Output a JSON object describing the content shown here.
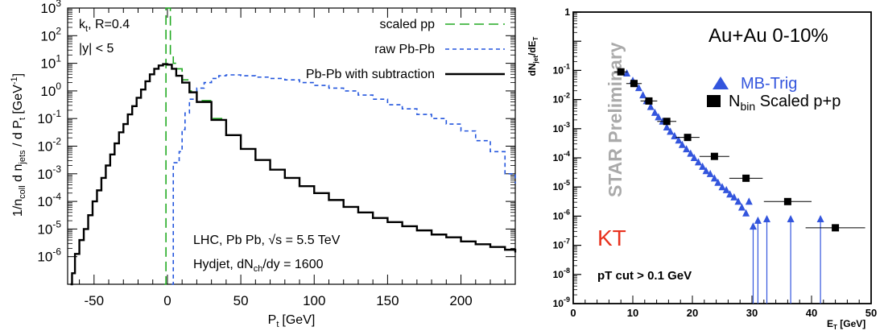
{
  "chart_data": [
    {
      "type": "line",
      "xlabel": "P",
      "xlabel_sub": "t",
      "xlabel_unit": "[GeV]",
      "ylabel_parts": [
        "1/n",
        "coll",
        " d n",
        "jets",
        " / d P",
        "t",
        " [GeV",
        "-1",
        "]"
      ],
      "xlim": [
        -68,
        237
      ],
      "ylim_log10": [
        -7,
        3
      ],
      "y_scale": "log",
      "x_ticks": [
        -50,
        0,
        50,
        100,
        150,
        200
      ],
      "x_tick_labels": [
        "-50",
        "0",
        "50",
        "100",
        "150",
        "200"
      ],
      "y_ticks_log10": [
        -6,
        -5,
        -4,
        -3,
        -2,
        -1,
        0,
        1,
        2,
        3
      ],
      "y_tick_base": "10",
      "y_tick_exps": [
        "-6",
        "-5",
        "-4",
        "-3",
        "-2",
        "-1",
        "0",
        "1",
        "2",
        "3"
      ],
      "annotations": {
        "algo_main": "k",
        "algo_sub": "t",
        "algo_rest": ", R=0.4",
        "rapidity": "|y| < 5",
        "lhc": "LHC, Pb Pb, √s = 5.5 TeV",
        "hydjet_main": "Hydjet, dN",
        "hydjet_sub": "ch",
        "hydjet_rest": "/dy = 1600"
      },
      "legend_position": "top-right",
      "series": [
        {
          "name": "scaled pp",
          "color": "#22aa22",
          "style": "long-dash",
          "x": [
            -2,
            -1,
            0,
            2,
            4,
            6,
            10,
            15,
            20,
            30,
            40,
            50,
            60,
            70,
            80,
            90,
            100,
            110,
            120,
            130,
            140,
            150,
            160,
            170,
            180,
            190,
            200,
            210,
            220,
            230,
            237
          ],
          "y_log10": [
            -7,
            3,
            3,
            1.3,
            1.0,
            0.8,
            0.4,
            0.0,
            -0.35,
            -1.0,
            -1.6,
            -2.1,
            -2.5,
            -2.85,
            -3.15,
            -3.45,
            -3.7,
            -3.95,
            -4.2,
            -4.4,
            -4.6,
            -4.75,
            -4.9,
            -5.05,
            -5.2,
            -5.3,
            -5.45,
            -5.55,
            -5.65,
            -5.75,
            -5.85
          ]
        },
        {
          "name": "raw Pb-Pb",
          "color": "#2255dd",
          "style": "short-dash",
          "x": [
            3,
            4,
            6,
            8,
            10,
            12,
            15,
            20,
            25,
            30,
            35,
            40,
            45,
            50,
            60,
            70,
            80,
            90,
            100,
            110,
            120,
            130,
            140,
            150,
            160,
            170,
            180,
            190,
            200,
            210,
            220,
            230,
            237
          ],
          "y_log10": [
            -7,
            -2.6,
            -2.6,
            -2.2,
            -1.4,
            -0.8,
            -0.3,
            0.1,
            0.3,
            0.45,
            0.55,
            0.58,
            0.58,
            0.55,
            0.5,
            0.45,
            0.4,
            0.3,
            0.2,
            0.1,
            0.0,
            -0.15,
            -0.3,
            -0.5,
            -0.65,
            -0.85,
            -1.0,
            -1.2,
            -1.45,
            -1.8,
            -2.2,
            -3.0,
            -3.35
          ]
        },
        {
          "name": "Pb-Pb with subtraction",
          "color": "#000000",
          "style": "solid",
          "x": [
            -66,
            -65,
            -63,
            -60,
            -57,
            -54,
            -51,
            -48,
            -45,
            -42,
            -39,
            -36,
            -33,
            -30,
            -27,
            -24,
            -21,
            -18,
            -15,
            -12,
            -9,
            -6,
            -3,
            0,
            3,
            6,
            10,
            15,
            20,
            30,
            40,
            50,
            60,
            70,
            80,
            90,
            100,
            110,
            120,
            130,
            140,
            150,
            160,
            170,
            180,
            190,
            200,
            210,
            220,
            230,
            237
          ],
          "y_log10": [
            -7,
            -6.6,
            -5.9,
            -5.4,
            -5.0,
            -4.5,
            -4.0,
            -3.6,
            -3.15,
            -2.7,
            -2.3,
            -1.9,
            -1.5,
            -1.2,
            -0.85,
            -0.55,
            -0.25,
            0.05,
            0.35,
            0.6,
            0.8,
            0.92,
            0.97,
            0.95,
            0.8,
            0.55,
            0.3,
            -0.05,
            -0.4,
            -1.05,
            -1.6,
            -2.1,
            -2.5,
            -2.85,
            -3.15,
            -3.45,
            -3.7,
            -3.95,
            -4.2,
            -4.4,
            -4.6,
            -4.75,
            -4.9,
            -5.05,
            -5.2,
            -5.3,
            -5.45,
            -5.55,
            -5.65,
            -5.75,
            -5.85
          ]
        }
      ]
    },
    {
      "type": "scatter",
      "xlabel": "E",
      "xlabel_sub": "T",
      "xlabel_unit": " [GeV]",
      "ylabel": "dN",
      "ylabel_sub1": "jet",
      "ylabel_mid": "/dE",
      "ylabel_sub2": "T",
      "xlim": [
        0,
        50
      ],
      "ylim_log10": [
        -9,
        1
      ],
      "y_scale": "log",
      "x_ticks": [
        0,
        10,
        20,
        30,
        40,
        50
      ],
      "x_tick_labels": [
        "0",
        "10",
        "20",
        "30",
        "40",
        "50"
      ],
      "y_ticks_log10": [
        -9,
        -8,
        -7,
        -6,
        -5,
        -4,
        -3,
        -2,
        -1,
        0,
        1
      ],
      "y_tick_base": "10",
      "y_tick_exps": [
        "-9",
        "-8",
        "-7",
        "-6",
        "-5",
        "-4",
        "-3",
        "-2",
        "-1",
        "",
        "1"
      ],
      "y_tick_plain": [
        "",
        "",
        "",
        "",
        "",
        "",
        "",
        "",
        "",
        "",
        "1"
      ],
      "title": "Au+Au 0-10%",
      "watermark": "STAR Preliminary",
      "tag": "KT",
      "cut_label": "pT cut > 0.1 GeV",
      "legend_position": "right",
      "series": [
        {
          "name": "MB-Trig",
          "color": "#3355dd",
          "marker": "triangle",
          "x": [
            9,
            10,
            11,
            11.7,
            12.3,
            13,
            13.7,
            14.3,
            15,
            15.7,
            16.3,
            17,
            17.7,
            18.3,
            19,
            19.7,
            20.3,
            21,
            21.7,
            22.3,
            23,
            23.7,
            24.3,
            25,
            25.7,
            26.3,
            27,
            27.7,
            28.3,
            29,
            29.5,
            30.2,
            31,
            32.5,
            36.5,
            41.5
          ],
          "y_log10": [
            -1.1,
            -1.35,
            -1.6,
            -1.85,
            -2.05,
            -2.25,
            -2.45,
            -2.6,
            -2.75,
            -2.95,
            -3.1,
            -3.25,
            -3.4,
            -3.55,
            -3.7,
            -3.85,
            -4.0,
            -4.15,
            -4.3,
            -4.45,
            -4.55,
            -4.7,
            -4.85,
            -5.0,
            -5.1,
            -5.25,
            -5.35,
            -5.5,
            -5.7,
            -5.9,
            -5.5,
            -6.35,
            -6.15,
            -6.1,
            -6.1,
            -6.1
          ],
          "y_err_low_log10": [
            null,
            null,
            null,
            null,
            null,
            null,
            null,
            null,
            null,
            null,
            null,
            null,
            null,
            null,
            null,
            null,
            null,
            null,
            null,
            null,
            null,
            null,
            null,
            null,
            null,
            null,
            null,
            null,
            null,
            null,
            null,
            -9,
            -9,
            -9,
            -9,
            -9
          ]
        },
        {
          "name": "N",
          "name_sub": "bin",
          "name_rest": " Scaled p+p",
          "color": "#000000",
          "marker": "square",
          "x": [
            8,
            10.2,
            12.7,
            15.7,
            19.2,
            23.7,
            29,
            36,
            44
          ],
          "y_log10": [
            -1.05,
            -1.45,
            -2.05,
            -2.75,
            -3.3,
            -3.95,
            -4.7,
            -5.5,
            -6.4
          ],
          "x_err": [
            1.1,
            1.3,
            1.4,
            1.6,
            2.0,
            2.5,
            2.8,
            4.0,
            5.0
          ]
        }
      ]
    }
  ]
}
